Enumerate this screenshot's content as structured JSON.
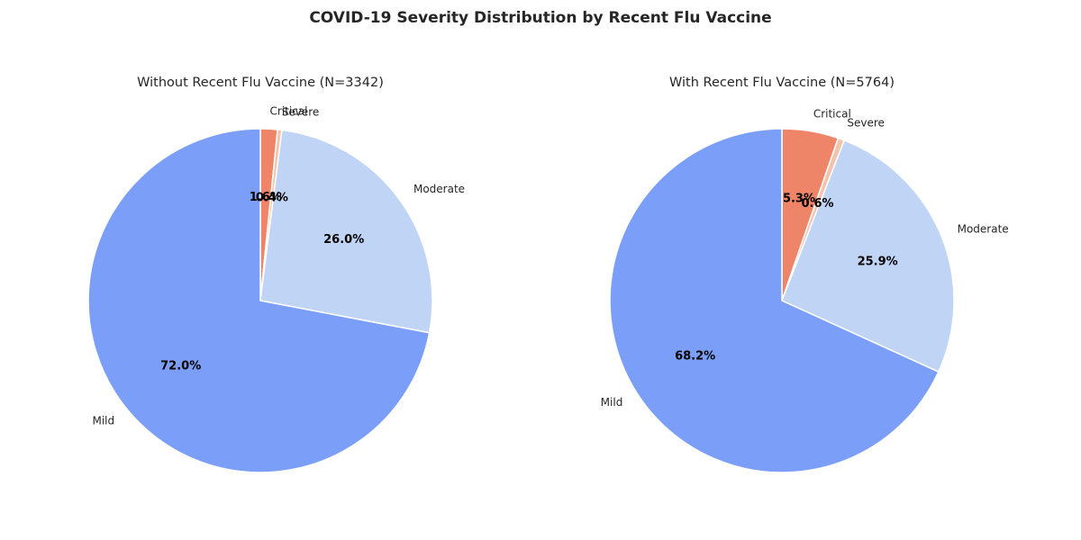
{
  "title": "COVID-19 Severity Distribution by Recent Flu Vaccine",
  "chart_data": [
    {
      "type": "pie",
      "title": "Without Recent Flu Vaccine (N=3342)",
      "categories": [
        "Critical",
        "Severe",
        "Moderate",
        "Mild"
      ],
      "values": [
        1.6,
        0.4,
        26.0,
        72.0
      ],
      "value_labels": [
        "1.6%",
        "0.4%",
        "26.0%",
        "72.0%"
      ],
      "colors": [
        "#ee8468",
        "#f4c3ab",
        "#c0d4f5",
        "#7b9ff9"
      ],
      "start_angle_deg": 90,
      "direction": "clockwise"
    },
    {
      "type": "pie",
      "title": "With Recent Flu Vaccine (N=5764)",
      "categories": [
        "Critical",
        "Severe",
        "Moderate",
        "Mild"
      ],
      "values": [
        5.3,
        0.6,
        25.9,
        68.2
      ],
      "value_labels": [
        "5.3%",
        "0.6%",
        "25.9%",
        "68.2%"
      ],
      "colors": [
        "#ee8468",
        "#f4c3ab",
        "#c0d4f5",
        "#7b9ff9"
      ],
      "start_angle_deg": 90,
      "direction": "clockwise"
    }
  ]
}
